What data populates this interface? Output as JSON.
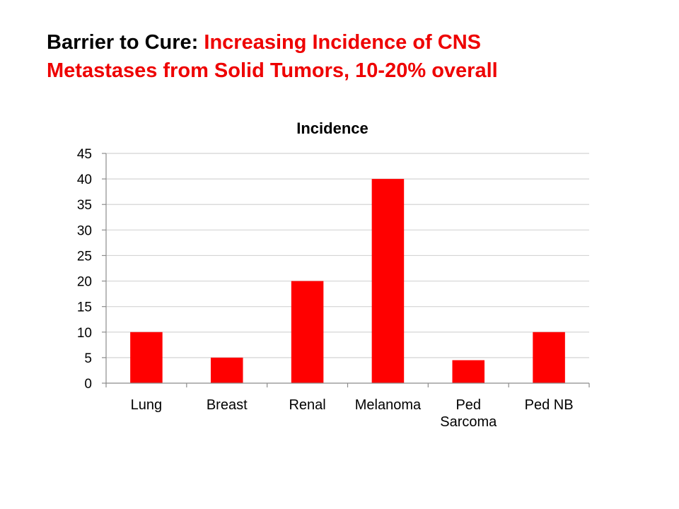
{
  "slide": {
    "title_prefix": "Barrier to Cure: ",
    "title_line1_rest": "Increasing Incidence of CNS",
    "title_line2": "Metastases from Solid Tumors, 10-20% overall"
  },
  "colors": {
    "accent": "#ee0000",
    "bar": "#ff0000",
    "grid": "#d4d4d4",
    "axis": "#8c8c8c",
    "text": "#000000"
  },
  "chart_data": {
    "type": "bar",
    "title": "Incidence",
    "xlabel": "",
    "ylabel": "",
    "categories": [
      [
        "Lung"
      ],
      [
        "Breast"
      ],
      [
        "Renal"
      ],
      [
        "Melanoma"
      ],
      [
        "Ped",
        "Sarcoma"
      ],
      [
        "Ped NB"
      ]
    ],
    "values": [
      10,
      5,
      20,
      40,
      4.5,
      10
    ],
    "ylim": [
      0,
      45
    ],
    "yticks": [
      0,
      5,
      10,
      15,
      20,
      25,
      30,
      35,
      40,
      45
    ],
    "grid": true,
    "legend": "none"
  }
}
